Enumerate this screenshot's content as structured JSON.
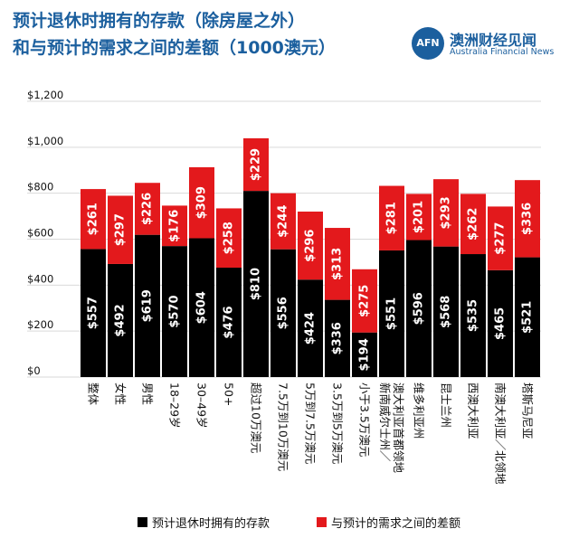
{
  "title": {
    "line1": "预计退休时拥有的存款（除房屋之外）",
    "line2": "和与预计的需求之间的差额（1000澳元）"
  },
  "brand": {
    "logo": "AFN",
    "name": "澳洲财经见闻",
    "sub": "Australia Financial News"
  },
  "colors": {
    "saved": "#000000",
    "gap": "#e3191c",
    "title": "#1b5f9e",
    "grid": "#d9d9d9"
  },
  "chart_data": {
    "type": "bar",
    "stacked": true,
    "categories": [
      "整体",
      "女性",
      "男性",
      "18–29岁",
      "30–49岁",
      "50+",
      "超过10万澳元",
      "7.5万到10万澳元",
      "5万到7.5万澳元",
      "3.5万到5万澳元",
      "小于3.5万澳元",
      "新南威尔士州／澳大利亚首都领地",
      "维多利亚州",
      "昆士兰州",
      "西澳大利亚",
      "南澳大利亚／北领地",
      "塔斯马尼亚"
    ],
    "category_lines": [
      [
        "整体"
      ],
      [
        "女性"
      ],
      [
        "男性"
      ],
      [
        "18–29岁"
      ],
      [
        "30–49岁"
      ],
      [
        "50+"
      ],
      [
        "超过10万澳元"
      ],
      [
        "7.5万到10万澳元"
      ],
      [
        "5万到7.5万澳元"
      ],
      [
        "3.5万到5万澳元"
      ],
      [
        "小于3.5万澳元"
      ],
      [
        "新南威尔士州／",
        "澳大利亚首都领地"
      ],
      [
        "维多利亚州"
      ],
      [
        "昆士兰州"
      ],
      [
        "西澳大利亚"
      ],
      [
        "南澳大利亚／北领地"
      ],
      [
        "塔斯马尼亚"
      ]
    ],
    "series": [
      {
        "name": "预计退休时拥有的存款",
        "values": [
          557,
          492,
          619,
          570,
          604,
          476,
          810,
          556,
          424,
          336,
          194,
          551,
          596,
          568,
          535,
          465,
          521
        ]
      },
      {
        "name": "与预计的需求之间的差额",
        "values": [
          261,
          297,
          226,
          176,
          309,
          258,
          229,
          244,
          296,
          313,
          275,
          281,
          201,
          293,
          262,
          277,
          336
        ]
      }
    ],
    "value_labels": [
      [
        "$557",
        "$492",
        "$619",
        "$570",
        "$604",
        "$476",
        "$810",
        "$556",
        "$424",
        "$336",
        "$194",
        "$551",
        "$596",
        "$568",
        "$535",
        "$465",
        "$521"
      ],
      [
        "$261",
        "$297",
        "$226",
        "$176",
        "$309",
        "$258",
        "$229",
        "$244",
        "$296",
        "$313",
        "$275",
        "$281",
        "$201",
        "$293",
        "$262",
        "$277",
        "$336"
      ]
    ],
    "yticks": [
      0,
      200,
      400,
      600,
      800,
      1000,
      1200
    ],
    "ytick_labels": [
      "$0",
      "$200",
      "$400",
      "$600",
      "$800",
      "$1,000",
      "$1,200"
    ],
    "ylim": [
      0,
      1200
    ],
    "grid": true,
    "legend_position": "bottom"
  },
  "legend": {
    "saved_label": "预计退休时拥有的存款",
    "gap_label": "与预计的需求之间的差额"
  }
}
